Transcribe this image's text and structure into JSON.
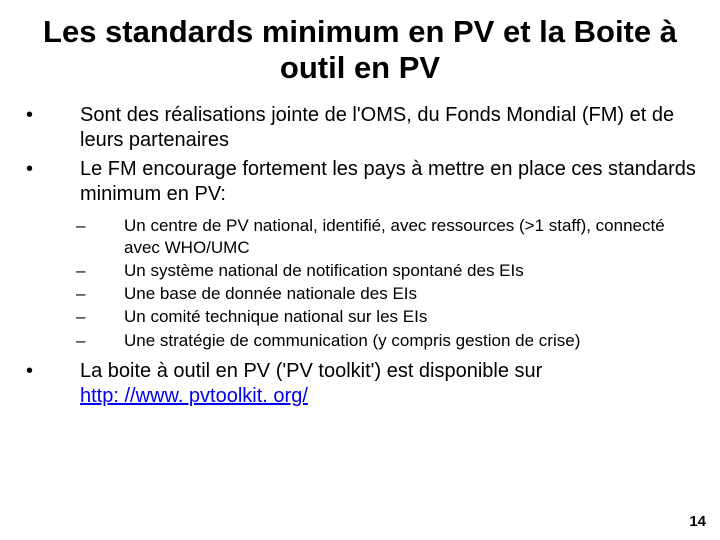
{
  "title": "Les standards minimum en PV et la Boite à outil en PV",
  "bullets": {
    "b1": "Sont des réalisations jointe de l'OMS, du Fonds Mondial (FM) et de leurs partenaires",
    "b2": "Le FM encourage fortement les pays à mettre en place ces standards minimum en PV:",
    "sub": {
      "s1": "Un centre de PV national, identifié, avec ressources (>1 staff), connecté avec WHO/UMC",
      "s2": "Un système national de notification spontané des EIs",
      "s3": "Une base de donnée nationale des EIs",
      "s4": "Un comité technique national sur les EIs",
      "s5": "Une stratégie de communication (y compris gestion de crise)"
    },
    "b3_pre": "La boite à outil en PV ('PV toolkit') est disponible sur ",
    "b3_link": "http: //www. pvtoolkit. org/"
  },
  "pagenum": "14",
  "colors": {
    "link": "#0000ee",
    "text": "#000000",
    "bg": "#ffffff"
  }
}
